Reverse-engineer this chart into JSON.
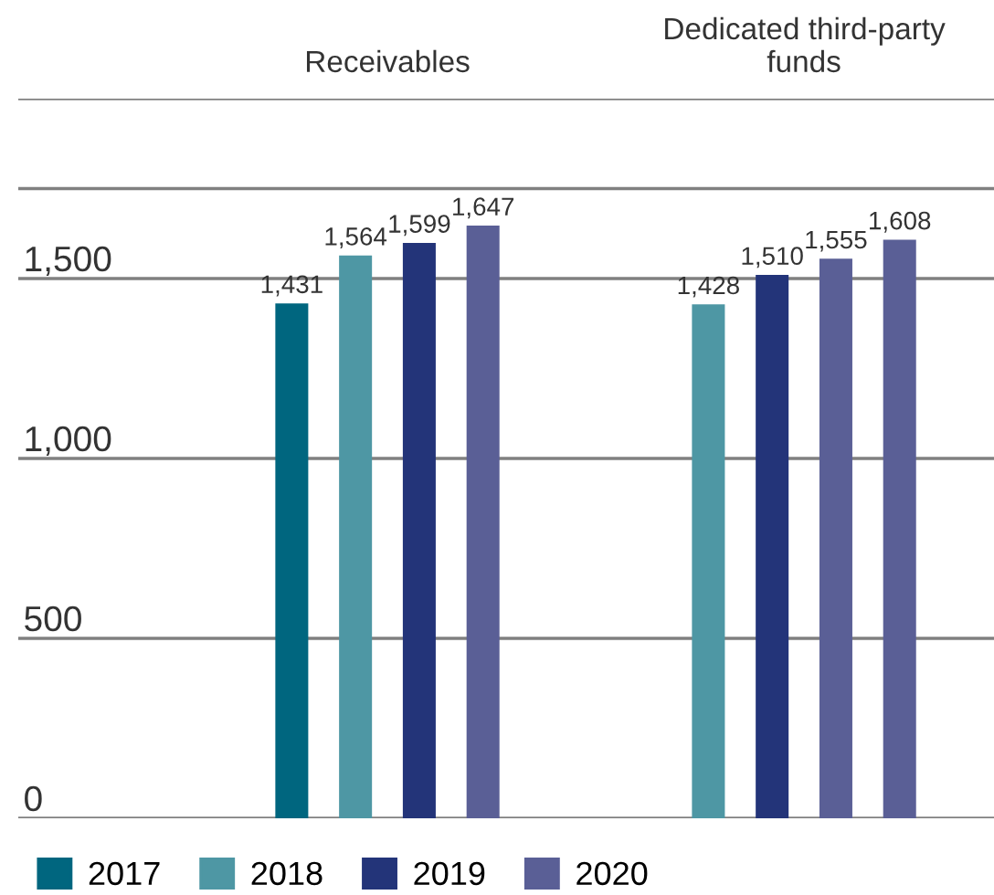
{
  "chart_data": {
    "type": "bar",
    "categories": [
      "Receivables",
      "Dedicated third-party funds"
    ],
    "series": [
      {
        "name": "2017",
        "color": "#00667f",
        "colors": [
          "#00667f",
          "#4e97a4"
        ],
        "values": [
          1431,
          1428
        ],
        "value_labels": [
          "1,431",
          "1,428"
        ]
      },
      {
        "name": "2018",
        "color": "#4e97a4",
        "colors": [
          "#4e97a4",
          "#233479"
        ],
        "values": [
          1564,
          1510
        ],
        "value_labels": [
          "1,564",
          "1,510"
        ]
      },
      {
        "name": "2019",
        "color": "#233479",
        "colors": [
          "#233479",
          "#5a5f96"
        ],
        "values": [
          1599,
          1555
        ],
        "value_labels": [
          "1,599",
          "1,555"
        ]
      },
      {
        "name": "2020",
        "color": "#5a5f96",
        "colors": [
          "#5a5f96",
          "#5a5f96"
        ],
        "values": [
          1647,
          1608
        ],
        "value_labels": [
          "1,647",
          "1,608"
        ]
      }
    ],
    "ylim": [
      0,
      2000
    ],
    "yticks": [
      {
        "value": 0,
        "label": "0"
      },
      {
        "value": 500,
        "label": "500"
      },
      {
        "value": 1000,
        "label": "1,000"
      },
      {
        "value": 1500,
        "label": "1,500"
      },
      {
        "value": 1750,
        "label": null
      },
      {
        "value": 2000,
        "label": null
      }
    ],
    "grid": "y",
    "legend": "bottom left"
  }
}
